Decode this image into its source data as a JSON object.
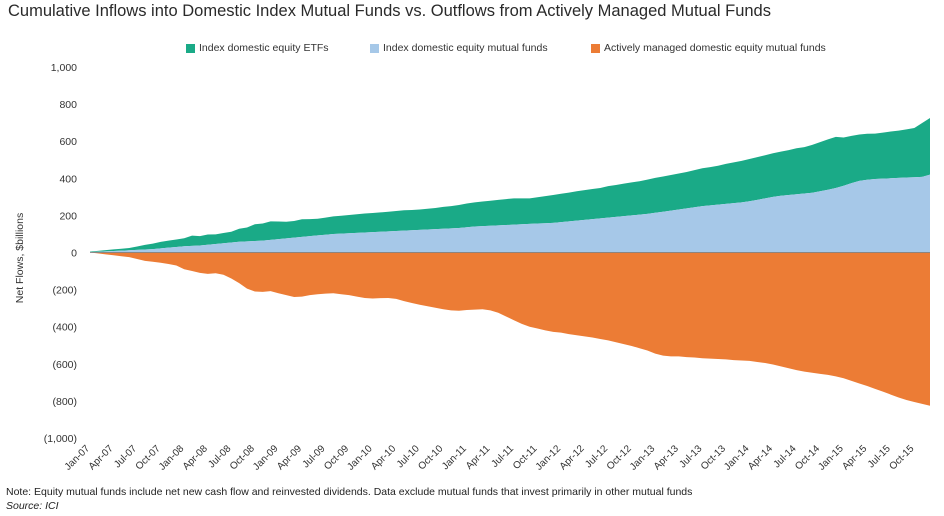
{
  "title": "Cumulative Inflows into Domestic Index Mutual Funds vs. Outflows from Actively Managed Mutual Funds",
  "note": "Note: Equity mutual funds include net new cash flow and reinvested dividends. Data exclude mutual funds that invest primarily in other mutual funds",
  "source": "Source: ICI",
  "chart_data": {
    "type": "area",
    "title": "Cumulative Inflows into Domestic Index Mutual Funds vs. Outflows from Actively Managed Mutual Funds",
    "ylabel": "Net Flows, $billions",
    "xlabel": "",
    "ylim": [
      -1000,
      1000
    ],
    "y_ticks": [
      1000,
      800,
      600,
      400,
      200,
      0,
      -200,
      -400,
      -600,
      -800,
      -1000
    ],
    "y_tick_labels": [
      "1,000",
      "800",
      "600",
      "400",
      "200",
      "0",
      "(200)",
      "(400)",
      "(600)",
      "(800)",
      "(1,000)"
    ],
    "x_tick_labels": [
      "Jan-07",
      "Apr-07",
      "Jul-07",
      "Oct-07",
      "Jan-08",
      "Apr-08",
      "Jul-08",
      "Oct-08",
      "Jan-09",
      "Apr-09",
      "Jul-09",
      "Oct-09",
      "Jan-10",
      "Apr-10",
      "Jul-10",
      "Oct-10",
      "Jan-11",
      "Apr-11",
      "Jul-11",
      "Oct-11",
      "Jan-12",
      "Apr-12",
      "Jul-12",
      "Oct-12",
      "Jan-13",
      "Apr-13",
      "Jul-13",
      "Oct-13",
      "Jan-14",
      "Apr-14",
      "Jul-14",
      "Oct-14",
      "Jan-15",
      "Apr-15",
      "Jul-15",
      "Oct-15"
    ],
    "legend_position": "top",
    "grid": false,
    "colors": {
      "etf": "#1aaa87",
      "index_mf": "#a6c8e8",
      "active": "#ec7c35"
    },
    "x": [
      "Jan-07",
      "Feb-07",
      "Mar-07",
      "Apr-07",
      "May-07",
      "Jun-07",
      "Jul-07",
      "Aug-07",
      "Sep-07",
      "Oct-07",
      "Nov-07",
      "Dec-07",
      "Jan-08",
      "Feb-08",
      "Mar-08",
      "Apr-08",
      "May-08",
      "Jun-08",
      "Jul-08",
      "Aug-08",
      "Sep-08",
      "Oct-08",
      "Nov-08",
      "Dec-08",
      "Jan-09",
      "Feb-09",
      "Mar-09",
      "Apr-09",
      "May-09",
      "Jun-09",
      "Jul-09",
      "Aug-09",
      "Sep-09",
      "Oct-09",
      "Nov-09",
      "Dec-09",
      "Jan-10",
      "Feb-10",
      "Mar-10",
      "Apr-10",
      "May-10",
      "Jun-10",
      "Jul-10",
      "Aug-10",
      "Sep-10",
      "Oct-10",
      "Nov-10",
      "Dec-10",
      "Jan-11",
      "Feb-11",
      "Mar-11",
      "Apr-11",
      "May-11",
      "Jun-11",
      "Jul-11",
      "Aug-11",
      "Sep-11",
      "Oct-11",
      "Nov-11",
      "Dec-11",
      "Jan-12",
      "Feb-12",
      "Mar-12",
      "Apr-12",
      "May-12",
      "Jun-12",
      "Jul-12",
      "Aug-12",
      "Sep-12",
      "Oct-12",
      "Nov-12",
      "Dec-12",
      "Jan-13",
      "Feb-13",
      "Mar-13",
      "Apr-13",
      "May-13",
      "Jun-13",
      "Jul-13",
      "Aug-13",
      "Sep-13",
      "Oct-13",
      "Nov-13",
      "Dec-13",
      "Jan-14",
      "Feb-14",
      "Mar-14",
      "Apr-14",
      "May-14",
      "Jun-14",
      "Jul-14",
      "Aug-14",
      "Sep-14",
      "Oct-14",
      "Nov-14",
      "Dec-14",
      "Jan-15",
      "Feb-15",
      "Mar-15",
      "Apr-15",
      "May-15",
      "Jun-15",
      "Jul-15",
      "Aug-15",
      "Sep-15",
      "Oct-15",
      "Nov-15",
      "Dec-15"
    ],
    "series": [
      {
        "name": "Index domestic equity ETFs",
        "key": "etf",
        "stack": "positive",
        "values": [
          3,
          5,
          7,
          9,
          10,
          12,
          18,
          25,
          30,
          35,
          38,
          40,
          43,
          55,
          50,
          55,
          52,
          55,
          58,
          70,
          75,
          90,
          92,
          100,
          95,
          90,
          90,
          95,
          92,
          90,
          92,
          95,
          96,
          98,
          100,
          102,
          103,
          104,
          106,
          108,
          110,
          109,
          110,
          112,
          114,
          118,
          120,
          124,
          128,
          130,
          133,
          135,
          138,
          140,
          142,
          140,
          138,
          142,
          146,
          150,
          153,
          155,
          158,
          160,
          162,
          164,
          170,
          172,
          175,
          178,
          180,
          185,
          188,
          190,
          192,
          194,
          196,
          200,
          204,
          206,
          210,
          216,
          220,
          224,
          228,
          230,
          232,
          235,
          238,
          242,
          248,
          250,
          258,
          265,
          272,
          275,
          260,
          255,
          250,
          248,
          245,
          248,
          252,
          255,
          260,
          265,
          290,
          305
        ]
      },
      {
        "name": "Index domestic equity mutual funds",
        "key": "index_mf",
        "stack": "positive",
        "values": [
          2,
          4,
          6,
          8,
          10,
          12,
          14,
          16,
          18,
          22,
          26,
          30,
          34,
          36,
          38,
          42,
          46,
          50,
          54,
          58,
          60,
          62,
          64,
          68,
          72,
          76,
          80,
          84,
          88,
          92,
          96,
          100,
          102,
          104,
          106,
          108,
          110,
          112,
          114,
          116,
          118,
          120,
          122,
          124,
          126,
          128,
          130,
          132,
          136,
          140,
          142,
          144,
          146,
          148,
          150,
          152,
          154,
          156,
          158,
          160,
          164,
          168,
          172,
          176,
          180,
          184,
          188,
          192,
          196,
          200,
          204,
          208,
          214,
          220,
          226,
          232,
          238,
          244,
          250,
          254,
          258,
          262,
          266,
          270,
          276,
          284,
          292,
          300,
          306,
          310,
          314,
          318,
          322,
          330,
          338,
          348,
          360,
          374,
          386,
          392,
          396,
          398,
          400,
          402,
          404,
          406,
          408,
          420
        ]
      },
      {
        "name": "Actively managed domestic equity mutual funds",
        "key": "active",
        "stack": "negative",
        "values": [
          0,
          -5,
          -10,
          -15,
          -20,
          -25,
          -35,
          -45,
          -50,
          -55,
          -62,
          -70,
          -90,
          -100,
          -110,
          -115,
          -112,
          -120,
          -140,
          -165,
          -195,
          -210,
          -212,
          -208,
          -220,
          -230,
          -240,
          -238,
          -230,
          -225,
          -222,
          -220,
          -225,
          -230,
          -238,
          -245,
          -248,
          -246,
          -245,
          -250,
          -262,
          -272,
          -282,
          -290,
          -298,
          -306,
          -312,
          -314,
          -310,
          -308,
          -306,
          -312,
          -325,
          -345,
          -365,
          -385,
          -400,
          -410,
          -420,
          -428,
          -432,
          -440,
          -446,
          -452,
          -458,
          -466,
          -474,
          -484,
          -494,
          -504,
          -516,
          -528,
          -545,
          -556,
          -560,
          -560,
          -564,
          -566,
          -570,
          -572,
          -574,
          -576,
          -580,
          -582,
          -584,
          -590,
          -596,
          -604,
          -614,
          -624,
          -634,
          -642,
          -648,
          -654,
          -660,
          -668,
          -678,
          -692,
          -706,
          -720,
          -735,
          -750,
          -766,
          -782,
          -795,
          -806,
          -816,
          -826
        ]
      }
    ]
  }
}
